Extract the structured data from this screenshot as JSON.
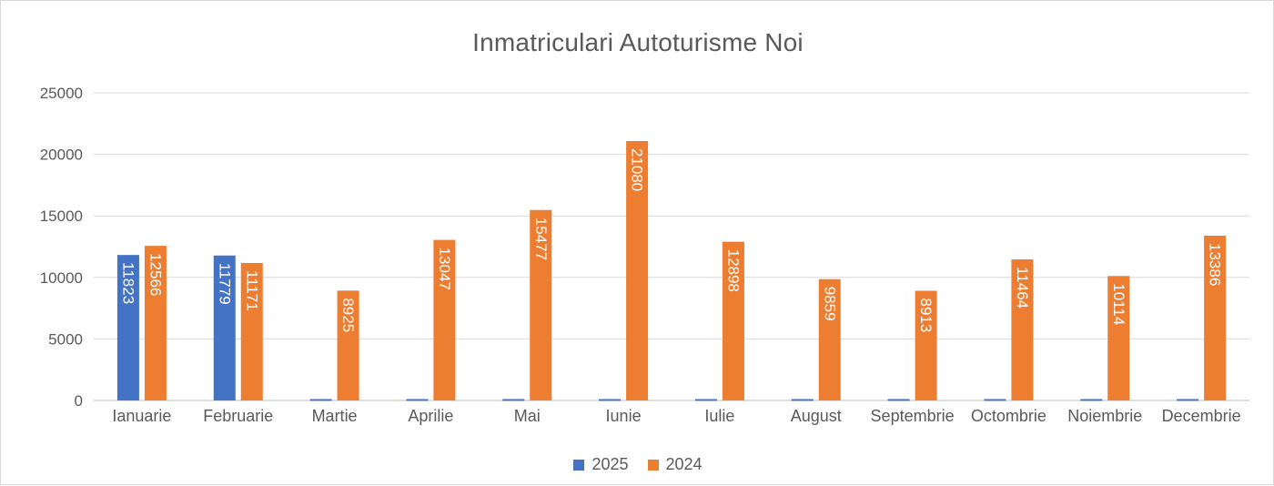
{
  "chart_data": {
    "type": "bar",
    "title": "Inmatriculari Autoturisme Noi",
    "xlabel": "",
    "ylabel": "",
    "ylim": [
      0,
      25000
    ],
    "yticks": [
      0,
      5000,
      10000,
      15000,
      20000,
      25000
    ],
    "grid": true,
    "legend_position": "bottom",
    "categories": [
      "Ianuarie",
      "Februarie",
      "Martie",
      "Aprilie",
      "Mai",
      "Iunie",
      "Iulie",
      "August",
      "Septembrie",
      "Octombrie",
      "Noiembrie",
      "Decembrie"
    ],
    "series": [
      {
        "name": "2025",
        "color": "#4472c4",
        "values": [
          11823,
          11779,
          0,
          0,
          0,
          0,
          0,
          0,
          0,
          0,
          0,
          0
        ],
        "labels": [
          "11823",
          "11779",
          "",
          "",
          "",
          "",
          "",
          "",
          "",
          "",
          "",
          ""
        ]
      },
      {
        "name": "2024",
        "color": "#ed7d31",
        "values": [
          12566,
          11171,
          8925,
          13047,
          15477,
          21080,
          12898,
          9859,
          8913,
          11464,
          10114,
          13386
        ],
        "labels": [
          "12566",
          "11171",
          "8925",
          "13047",
          "15477",
          "21080",
          "12898",
          "9859",
          "8913",
          "11464",
          "10114",
          "13386"
        ]
      }
    ]
  }
}
